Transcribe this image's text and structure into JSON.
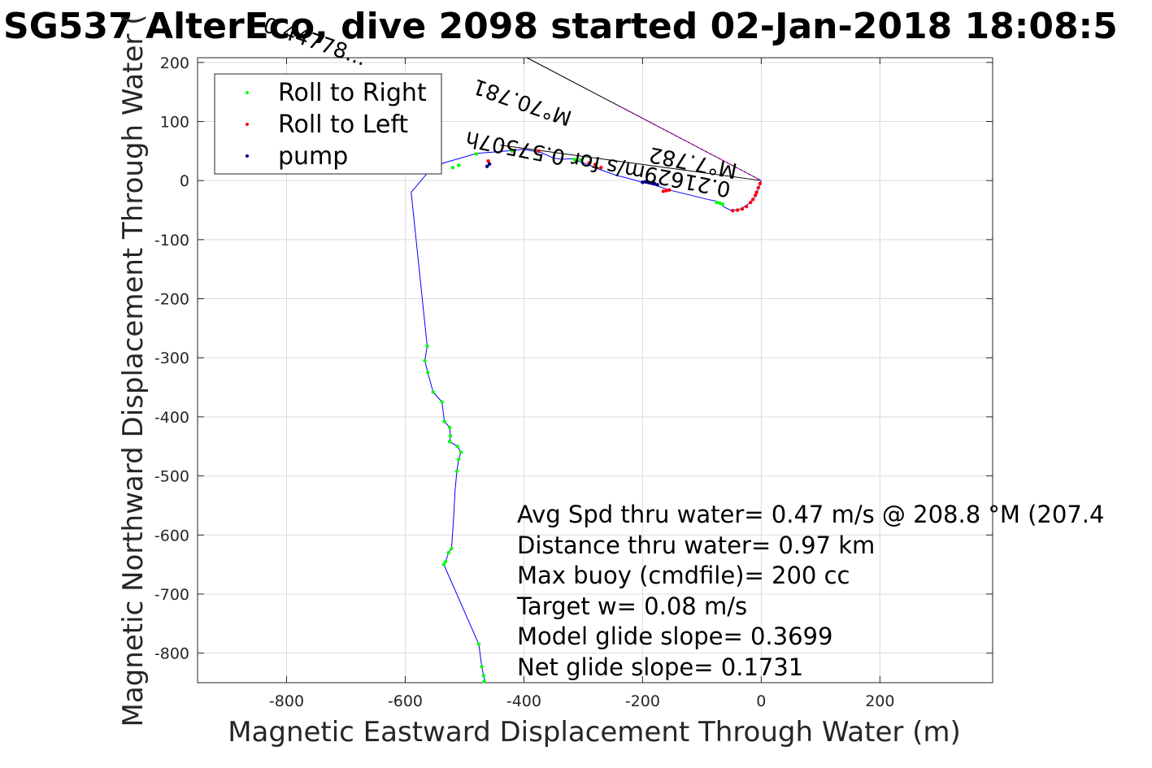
{
  "chart_data": {
    "type": "scatter",
    "title": "SG537 AlterEco, dive 2098 started 02-Jan-2018 18:08:5",
    "xlabel": "Magnetic Eastward Displacement Through Water (m)",
    "ylabel": "Magnetic Northward Displacement Through Water (",
    "xlim": [
      -950,
      390
    ],
    "ylim": [
      -850,
      208
    ],
    "xticks": [
      -800,
      -600,
      -400,
      -200,
      0,
      200
    ],
    "yticks": [
      200,
      100,
      0,
      -100,
      -200,
      -300,
      -400,
      -500,
      -600,
      -700,
      -800
    ],
    "grid": true,
    "legend": {
      "placement": "top-left",
      "entries": [
        {
          "label": "Roll to Right",
          "color": "#00ff00"
        },
        {
          "label": "Roll to Left",
          "color": "#ff0000"
        },
        {
          "label": "pump",
          "color": "#000080"
        }
      ]
    },
    "track_color": "#0000ff",
    "track": [
      [
        0,
        0
      ],
      [
        -5,
        -15
      ],
      [
        -12,
        -30
      ],
      [
        -22,
        -40
      ],
      [
        -35,
        -48
      ],
      [
        -50,
        -51
      ],
      [
        -62,
        -45
      ],
      [
        -75,
        -35
      ],
      [
        -90,
        -32
      ],
      [
        -110,
        -27
      ],
      [
        -130,
        -22
      ],
      [
        -155,
        -16
      ],
      [
        -175,
        -9
      ],
      [
        -200,
        -3
      ],
      [
        -225,
        4
      ],
      [
        -245,
        9
      ],
      [
        -270,
        18
      ],
      [
        -295,
        28
      ],
      [
        -305,
        32
      ],
      [
        -320,
        37
      ],
      [
        -335,
        36
      ],
      [
        -350,
        38
      ],
      [
        -370,
        47
      ],
      [
        -400,
        53
      ],
      [
        -430,
        50
      ],
      [
        -480,
        46
      ],
      [
        -510,
        37
      ],
      [
        -535,
        30
      ],
      [
        -555,
        20
      ],
      [
        -565,
        10
      ],
      [
        -590,
        -20
      ],
      [
        -563,
        -280
      ],
      [
        -567,
        -305
      ],
      [
        -562,
        -325
      ],
      [
        -553,
        -358
      ],
      [
        -538,
        -375
      ],
      [
        -534,
        -408
      ],
      [
        -525,
        -418
      ],
      [
        -524,
        -432
      ],
      [
        -525,
        -442
      ],
      [
        -512,
        -450
      ],
      [
        -506,
        -460
      ],
      [
        -510,
        -472
      ],
      [
        -513,
        -492
      ],
      [
        -516,
        -525
      ],
      [
        -519,
        -580
      ],
      [
        -522,
        -623
      ],
      [
        -527,
        -630
      ],
      [
        -532,
        -645
      ],
      [
        -535,
        -650
      ],
      [
        -476,
        -785
      ],
      [
        -471,
        -823
      ],
      [
        -468,
        -838
      ],
      [
        -465,
        -848
      ]
    ],
    "roll_right": [
      [
        -65,
        -40
      ],
      [
        -70,
        -38
      ],
      [
        -75,
        -37
      ],
      [
        -305,
        35
      ],
      [
        -315,
        36
      ],
      [
        -420,
        50
      ],
      [
        -480,
        45
      ],
      [
        -510,
        26
      ],
      [
        -520,
        22
      ],
      [
        -563,
        -280
      ],
      [
        -567,
        -305
      ],
      [
        -562,
        -325
      ],
      [
        -553,
        -358
      ],
      [
        -538,
        -375
      ],
      [
        -534,
        -408
      ],
      [
        -525,
        -418
      ],
      [
        -524,
        -432
      ],
      [
        -525,
        -442
      ],
      [
        -512,
        -450
      ],
      [
        -506,
        -460
      ],
      [
        -510,
        -472
      ],
      [
        -513,
        -492
      ],
      [
        -522,
        -623
      ],
      [
        -527,
        -630
      ],
      [
        -532,
        -645
      ],
      [
        -535,
        -650
      ],
      [
        -476,
        -785
      ],
      [
        -471,
        -823
      ],
      [
        -468,
        -838
      ],
      [
        -467,
        -848
      ]
    ],
    "roll_left": [
      [
        -2,
        -5
      ],
      [
        -5,
        -12
      ],
      [
        -8,
        -20
      ],
      [
        -10,
        -25
      ],
      [
        -14,
        -32
      ],
      [
        -18,
        -37
      ],
      [
        -25,
        -44
      ],
      [
        -32,
        -48
      ],
      [
        -40,
        -50
      ],
      [
        -48,
        -51
      ],
      [
        -155,
        -16
      ],
      [
        -160,
        -17
      ],
      [
        -165,
        -18
      ],
      [
        -270,
        22
      ],
      [
        -280,
        27
      ],
      [
        -290,
        30
      ],
      [
        -375,
        50
      ],
      [
        -460,
        33
      ]
    ],
    "pump": [
      [
        -200,
        -3
      ],
      [
        -195,
        -2
      ],
      [
        -190,
        -3
      ],
      [
        -185,
        -4
      ],
      [
        -180,
        -5
      ],
      [
        -175,
        -7
      ],
      [
        -458,
        28
      ],
      [
        -462,
        24
      ]
    ],
    "vectors": [
      {
        "from": [
          0,
          0
        ],
        "to": [
          -395,
          208
        ]
      },
      {
        "from": [
          0,
          0
        ],
        "to": [
          -440,
          60
        ]
      }
    ],
    "vector_labels": [
      "0.44778...",
      "M°70.781",
      "0.21629m/s for 0.57507h",
      "M°7.782"
    ],
    "stats_text": [
      "Avg Spd thru water=  0.47 m/s @ 208.8 °M (207.4",
      "Distance thru water=  0.97 km",
      "Max buoy (cmdfile)= 200 cc",
      "Target w= 0.08 m/s",
      "Model glide slope= 0.3699",
      "Net glide slope= 0.1731"
    ]
  }
}
